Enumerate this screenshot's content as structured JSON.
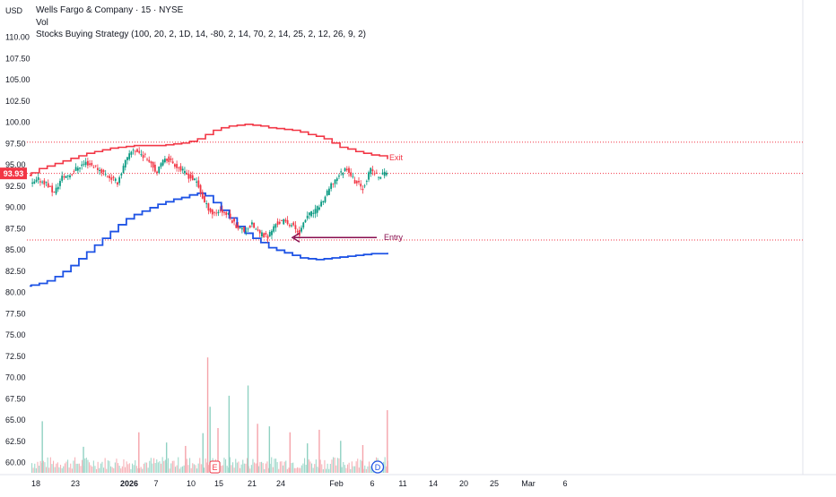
{
  "header": {
    "currency": "USD",
    "symbol_line": "Wells Fargo & Company · 15 · NYSE",
    "vol_label": "Vol",
    "strategy_line": "Stocks Buying Strategy (100, 20, 2, 1D, 14, -80, 2, 14, 70, 2, 14, 25, 2, 12, 26, 9, 2)"
  },
  "price_badge": {
    "label": "93.93",
    "color": "#f23645"
  },
  "annotations": {
    "exit": "Exit",
    "entry": "Entry",
    "earnings": "E",
    "dividend": "D"
  },
  "colors": {
    "up": "#089981",
    "down": "#f23645",
    "upper_band": "#f23645",
    "lower_band": "#1e53e5",
    "arrow": "#880e4f",
    "axis_text": "#131722",
    "entry_label": "#880e4f"
  },
  "chart_data": {
    "type": "candlestick",
    "y_ticks": [
      "110.00",
      "107.50",
      "105.00",
      "102.50",
      "100.00",
      "97.50",
      "95.00",
      "92.50",
      "90.00",
      "87.50",
      "85.00",
      "82.50",
      "80.00",
      "77.50",
      "75.00",
      "72.50",
      "70.00",
      "67.50",
      "65.00",
      "62.50",
      "60.00"
    ],
    "ylim": [
      58.9,
      111.2
    ],
    "x_ticks": [
      "18",
      "23",
      "2026",
      "7",
      "10",
      "15",
      "21",
      "24",
      "Feb",
      "6",
      "11",
      "14",
      "20",
      "25",
      "Mar",
      "6"
    ],
    "x_tick_days": [
      0,
      5,
      14,
      21,
      24,
      29,
      35,
      38,
      46,
      51,
      56,
      59,
      65,
      70,
      74,
      81
    ],
    "xlim_days": [
      -0.5,
      85
    ],
    "last_price": 93.93,
    "exit_level": 97.6,
    "entry_level": 86.1,
    "price_path": [
      [
        0,
        92.5
      ],
      [
        1,
        93.2
      ],
      [
        2,
        92.8
      ],
      [
        3,
        91.6
      ],
      [
        4,
        93.5
      ],
      [
        5,
        93.8
      ],
      [
        6,
        94.7
      ],
      [
        7,
        95.2
      ],
      [
        8,
        94.8
      ],
      [
        9,
        94.2
      ],
      [
        10,
        93.5
      ],
      [
        11,
        92.9
      ],
      [
        12,
        95.3
      ],
      [
        13,
        96.8
      ],
      [
        14,
        96.2
      ],
      [
        15,
        95.6
      ],
      [
        16,
        94.0
      ],
      [
        17,
        95.8
      ],
      [
        18,
        95.2
      ],
      [
        19,
        94.4
      ],
      [
        20,
        93.6
      ],
      [
        21,
        92.9
      ],
      [
        22,
        90.5
      ],
      [
        23,
        89.2
      ],
      [
        24,
        89.6
      ],
      [
        25,
        89.0
      ],
      [
        26,
        87.8
      ],
      [
        27,
        87.2
      ],
      [
        28,
        87.9
      ],
      [
        29,
        86.8
      ],
      [
        30,
        86.5
      ],
      [
        31,
        88.0
      ],
      [
        32,
        88.3
      ],
      [
        33,
        87.9
      ],
      [
        34,
        86.9
      ],
      [
        35,
        89.0
      ],
      [
        36,
        89.5
      ],
      [
        37,
        90.8
      ],
      [
        38,
        92.5
      ],
      [
        39,
        93.8
      ],
      [
        40,
        94.6
      ],
      [
        41,
        93.0
      ],
      [
        42,
        92.2
      ],
      [
        43,
        94.4
      ],
      [
        44,
        93.5
      ],
      [
        45,
        94.2
      ]
    ],
    "upper_band": [
      [
        -0.5,
        93.7
      ],
      [
        0,
        94.0
      ],
      [
        1,
        94.5
      ],
      [
        2,
        94.8
      ],
      [
        3,
        95.1
      ],
      [
        4,
        95.4
      ],
      [
        5,
        95.7
      ],
      [
        6,
        96.0
      ],
      [
        7,
        96.3
      ],
      [
        8,
        96.5
      ],
      [
        9,
        96.7
      ],
      [
        10,
        96.9
      ],
      [
        11,
        97.0
      ],
      [
        12,
        97.1
      ],
      [
        13,
        97.2
      ],
      [
        14,
        97.2
      ],
      [
        15,
        97.2
      ],
      [
        16,
        97.2
      ],
      [
        17,
        97.3
      ],
      [
        18,
        97.4
      ],
      [
        19,
        97.5
      ],
      [
        20,
        97.7
      ],
      [
        21,
        98.0
      ],
      [
        22,
        98.5
      ],
      [
        23,
        99.0
      ],
      [
        24,
        99.3
      ],
      [
        25,
        99.5
      ],
      [
        26,
        99.6
      ],
      [
        27,
        99.7
      ],
      [
        28,
        99.6
      ],
      [
        29,
        99.5
      ],
      [
        30,
        99.3
      ],
      [
        31,
        99.2
      ],
      [
        32,
        99.1
      ],
      [
        33,
        99.0
      ],
      [
        34,
        98.8
      ],
      [
        35,
        98.5
      ],
      [
        36,
        98.3
      ],
      [
        37,
        98.0
      ],
      [
        38,
        97.5
      ],
      [
        39,
        97.0
      ],
      [
        40,
        96.8
      ],
      [
        41,
        96.5
      ],
      [
        42,
        96.3
      ],
      [
        43,
        96.1
      ],
      [
        44,
        96.0
      ],
      [
        45,
        95.6
      ]
    ],
    "lower_band": [
      [
        -0.5,
        80.7
      ],
      [
        0,
        80.8
      ],
      [
        1,
        81.0
      ],
      [
        2,
        81.3
      ],
      [
        3,
        81.8
      ],
      [
        4,
        82.4
      ],
      [
        5,
        83.1
      ],
      [
        6,
        83.9
      ],
      [
        7,
        84.7
      ],
      [
        8,
        85.5
      ],
      [
        9,
        86.3
      ],
      [
        10,
        87.1
      ],
      [
        11,
        87.9
      ],
      [
        12,
        88.6
      ],
      [
        13,
        89.1
      ],
      [
        14,
        89.5
      ],
      [
        15,
        89.9
      ],
      [
        16,
        90.3
      ],
      [
        17,
        90.6
      ],
      [
        18,
        90.9
      ],
      [
        19,
        91.1
      ],
      [
        20,
        91.4
      ],
      [
        21,
        91.6
      ],
      [
        22,
        91.3
      ],
      [
        23,
        90.5
      ],
      [
        24,
        89.6
      ],
      [
        25,
        88.7
      ],
      [
        26,
        87.7
      ],
      [
        27,
        86.9
      ],
      [
        28,
        86.3
      ],
      [
        29,
        85.8
      ],
      [
        30,
        85.2
      ],
      [
        31,
        84.9
      ],
      [
        32,
        84.6
      ],
      [
        33,
        84.3
      ],
      [
        34,
        84.0
      ],
      [
        35,
        83.9
      ],
      [
        36,
        83.8
      ],
      [
        37,
        83.9
      ],
      [
        38,
        84.0
      ],
      [
        39,
        84.1
      ],
      [
        40,
        84.2
      ],
      [
        41,
        84.3
      ],
      [
        42,
        84.4
      ],
      [
        43,
        84.5
      ],
      [
        44,
        84.5
      ],
      [
        45,
        84.6
      ]
    ],
    "volume_spikes": [
      {
        "day": 1.3,
        "top": 64.8,
        "up": true
      },
      {
        "day": 6.5,
        "top": 61.8,
        "up": true
      },
      {
        "day": 13.5,
        "top": 63.5,
        "up": false
      },
      {
        "day": 17.0,
        "top": 62.3,
        "up": true
      },
      {
        "day": 19.4,
        "top": 61.9,
        "up": false
      },
      {
        "day": 21.6,
        "top": 63.4,
        "up": true
      },
      {
        "day": 22.2,
        "top": 72.3,
        "up": false
      },
      {
        "day": 22.5,
        "top": 66.5,
        "up": true
      },
      {
        "day": 23.5,
        "top": 64.0,
        "up": false
      },
      {
        "day": 24.9,
        "top": 67.8,
        "up": true
      },
      {
        "day": 27.3,
        "top": 69.0,
        "up": true
      },
      {
        "day": 28.5,
        "top": 64.5,
        "up": false
      },
      {
        "day": 30.0,
        "top": 64.2,
        "up": true
      },
      {
        "day": 32.6,
        "top": 63.5,
        "up": false
      },
      {
        "day": 34.8,
        "top": 62.2,
        "up": true
      },
      {
        "day": 36.3,
        "top": 63.8,
        "up": false
      },
      {
        "day": 39.0,
        "top": 62.5,
        "up": true
      },
      {
        "day": 41.8,
        "top": 62.0,
        "up": false
      },
      {
        "day": 44.9,
        "top": 66.1,
        "up": false
      }
    ]
  }
}
